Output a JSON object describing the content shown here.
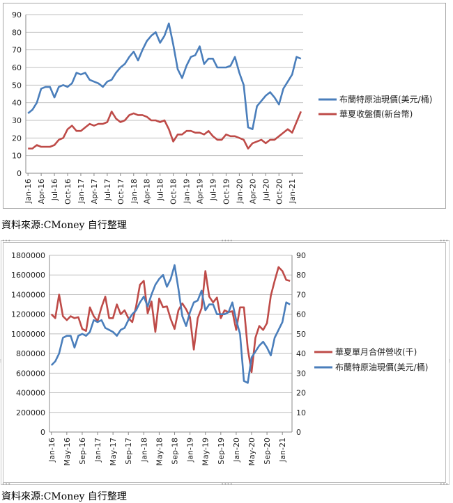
{
  "chart_data": [
    {
      "type": "line",
      "categories": [
        "Jan-16",
        "Feb-16",
        "Mar-16",
        "Apr-16",
        "May-16",
        "Jun-16",
        "Jul-16",
        "Aug-16",
        "Sep-16",
        "Oct-16",
        "Nov-16",
        "Dec-16",
        "Jan-17",
        "Feb-17",
        "Mar-17",
        "Apr-17",
        "May-17",
        "Jun-17",
        "Jul-17",
        "Aug-17",
        "Sep-17",
        "Oct-17",
        "Nov-17",
        "Dec-17",
        "Jan-18",
        "Feb-18",
        "Mar-18",
        "Apr-18",
        "May-18",
        "Jun-18",
        "Jul-18",
        "Aug-18",
        "Sep-18",
        "Oct-18",
        "Nov-18",
        "Dec-18",
        "Jan-19",
        "Feb-19",
        "Mar-19",
        "Apr-19",
        "May-19",
        "Jun-19",
        "Jul-19",
        "Aug-19",
        "Sep-19",
        "Oct-19",
        "Nov-19",
        "Dec-19",
        "Jan-20",
        "Feb-20",
        "Mar-20",
        "Apr-20",
        "May-20",
        "Jun-20",
        "Jul-20",
        "Aug-20",
        "Sep-20",
        "Oct-20",
        "Nov-20",
        "Dec-20",
        "Jan-21",
        "Feb-21",
        "Mar-21"
      ],
      "tick_labels": [
        "Jan-16",
        "Apr-16",
        "Jul-16",
        "Oct-16",
        "Jan-17",
        "Apr-17",
        "Jul-17",
        "Oct-17",
        "Jan-18",
        "Apr-18",
        "Jul-18",
        "Oct-18",
        "Jan-19",
        "Apr-19",
        "Jul-19",
        "Oct-19",
        "Jan-20",
        "Apr-20",
        "Jul-20",
        "Oct-20",
        "Jan-21"
      ],
      "ylim": [
        0,
        90
      ],
      "yticks": [
        0,
        10,
        20,
        30,
        40,
        50,
        60,
        70,
        80,
        90
      ],
      "grid": "horizontal",
      "legend": "right",
      "series": [
        {
          "name": "布蘭特原油現價(美元/桶)",
          "color": "#4a7ebb",
          "values": [
            34,
            36,
            40,
            48,
            49,
            49,
            43,
            49,
            50,
            49,
            51,
            57,
            56,
            57,
            53,
            52,
            51,
            49,
            52,
            53,
            57,
            60,
            62,
            66,
            69,
            64,
            70,
            75,
            78,
            80,
            74,
            78,
            85,
            73,
            59,
            54,
            61,
            66,
            67,
            72,
            62,
            65,
            65,
            60,
            60,
            60,
            61,
            66,
            57,
            50,
            26,
            25,
            38,
            41,
            44,
            46,
            43,
            39,
            48,
            52,
            56,
            66,
            65
          ]
        },
        {
          "name": "華夏收盤價(新台幣)",
          "color": "#be4b48",
          "values": [
            14,
            14,
            16,
            15,
            15,
            15,
            16,
            19,
            20,
            25,
            27,
            24,
            24,
            26,
            28,
            27,
            28,
            28,
            29,
            35,
            31,
            29,
            30,
            33,
            34,
            33,
            33,
            32,
            30,
            30,
            29,
            30,
            25,
            18,
            22,
            22,
            24,
            24,
            23,
            23,
            22,
            24,
            21,
            19,
            19,
            22,
            21,
            21,
            20,
            19,
            14,
            17,
            18,
            19,
            17,
            19,
            19,
            21,
            23,
            25,
            23,
            29,
            35
          ]
        }
      ]
    },
    {
      "type": "line",
      "categories": [
        "Jan-16",
        "Feb-16",
        "Mar-16",
        "Apr-16",
        "May-16",
        "Jun-16",
        "Jul-16",
        "Aug-16",
        "Sep-16",
        "Oct-16",
        "Nov-16",
        "Dec-16",
        "Jan-17",
        "Feb-17",
        "Mar-17",
        "Apr-17",
        "May-17",
        "Jun-17",
        "Jul-17",
        "Aug-17",
        "Sep-17",
        "Oct-17",
        "Nov-17",
        "Dec-17",
        "Jan-18",
        "Feb-18",
        "Mar-18",
        "Apr-18",
        "May-18",
        "Jun-18",
        "Jul-18",
        "Aug-18",
        "Sep-18",
        "Oct-18",
        "Nov-18",
        "Dec-18",
        "Jan-19",
        "Feb-19",
        "Mar-19",
        "Apr-19",
        "May-19",
        "Jun-19",
        "Jul-19",
        "Aug-19",
        "Sep-19",
        "Oct-19",
        "Nov-19",
        "Dec-19",
        "Jan-20",
        "Feb-20",
        "Mar-20",
        "Apr-20",
        "May-20",
        "Jun-20",
        "Jul-20",
        "Aug-20",
        "Sep-20",
        "Oct-20",
        "Nov-20",
        "Dec-20",
        "Jan-21",
        "Feb-21",
        "Mar-21"
      ],
      "tick_labels": [
        "Jan-16",
        "May-16",
        "Sep-16",
        "Jan-17",
        "May-17",
        "Sep-17",
        "Jan-18",
        "May-18",
        "Sep-18",
        "Jan-19",
        "May-19",
        "Sep-19",
        "Jan-20",
        "May-20",
        "Sep-20",
        "Jan-21"
      ],
      "ylim_left": [
        0,
        1800000
      ],
      "yticks_left": [
        "0",
        "200000",
        "400000",
        "600000",
        "800000",
        "1000000",
        "1200000",
        "1400000",
        "1600000",
        "1800000"
      ],
      "ylim_right": [
        0,
        90
      ],
      "yticks_right": [
        "0",
        "10",
        "20",
        "30",
        "40",
        "50",
        "60",
        "70",
        "80",
        "90"
      ],
      "grid": "horizontal",
      "legend": "right",
      "series": [
        {
          "name": "華夏單月合併營收(千)",
          "color": "#be4b48",
          "axis": "left",
          "values": [
            1200000,
            1160000,
            1400000,
            1180000,
            1140000,
            1180000,
            1160000,
            1170000,
            1050000,
            1030000,
            1270000,
            1180000,
            1130000,
            1270000,
            1380000,
            1160000,
            1160000,
            1300000,
            1200000,
            1240000,
            1160000,
            1120000,
            1280000,
            1500000,
            1540000,
            1210000,
            1330000,
            1020000,
            1360000,
            1270000,
            1280000,
            1150000,
            1050000,
            1240000,
            1310000,
            1250000,
            1170000,
            840000,
            1160000,
            1260000,
            1640000,
            1380000,
            1320000,
            1370000,
            1160000,
            1240000,
            1220000,
            1230000,
            1040000,
            1270000,
            1270000,
            850000,
            610000,
            960000,
            1080000,
            1040000,
            1110000,
            1390000,
            1540000,
            1680000,
            1640000,
            1550000,
            1540000
          ]
        },
        {
          "name": "布蘭特原油現價(美元/桶)",
          "color": "#4a7ebb",
          "axis": "right",
          "values": [
            34,
            36,
            40,
            48,
            49,
            49,
            43,
            49,
            50,
            49,
            51,
            57,
            56,
            57,
            53,
            52,
            51,
            49,
            52,
            53,
            57,
            60,
            62,
            66,
            69,
            64,
            70,
            75,
            78,
            80,
            74,
            78,
            85,
            73,
            59,
            54,
            61,
            66,
            67,
            72,
            62,
            65,
            65,
            60,
            60,
            60,
            61,
            66,
            57,
            50,
            26,
            25,
            38,
            41,
            44,
            46,
            43,
            39,
            48,
            52,
            56,
            66,
            65
          ]
        }
      ]
    }
  ],
  "source_note_1": "資料來源:CMoney 自行整理",
  "source_note_2": "資料來源:CMoney 自行整理"
}
